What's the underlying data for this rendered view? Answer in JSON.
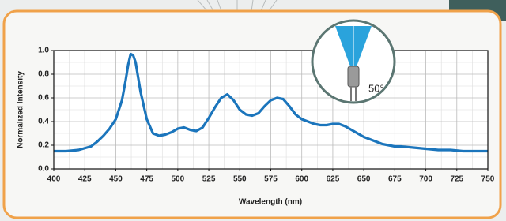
{
  "chart_data": {
    "type": "line",
    "xlabel": "Wavelength (nm)",
    "ylabel": "Normalized Intensity",
    "annotation": "50°",
    "x": [
      400,
      410,
      420,
      430,
      435,
      440,
      445,
      450,
      455,
      458,
      460,
      462,
      464,
      466,
      470,
      475,
      480,
      485,
      490,
      495,
      500,
      505,
      510,
      515,
      520,
      525,
      530,
      535,
      540,
      545,
      550,
      555,
      560,
      565,
      570,
      575,
      580,
      585,
      590,
      595,
      600,
      605,
      610,
      615,
      620,
      625,
      630,
      635,
      640,
      645,
      650,
      655,
      660,
      665,
      670,
      675,
      680,
      690,
      700,
      710,
      720,
      730,
      740,
      750
    ],
    "series": [
      {
        "color": "#1b75bc",
        "values": [
          0.15,
          0.15,
          0.16,
          0.19,
          0.23,
          0.28,
          0.34,
          0.42,
          0.58,
          0.75,
          0.88,
          0.97,
          0.96,
          0.9,
          0.65,
          0.42,
          0.3,
          0.28,
          0.29,
          0.31,
          0.34,
          0.35,
          0.33,
          0.32,
          0.35,
          0.43,
          0.52,
          0.6,
          0.63,
          0.58,
          0.5,
          0.46,
          0.45,
          0.47,
          0.53,
          0.58,
          0.6,
          0.59,
          0.53,
          0.46,
          0.42,
          0.4,
          0.38,
          0.37,
          0.37,
          0.38,
          0.38,
          0.36,
          0.33,
          0.3,
          0.27,
          0.25,
          0.23,
          0.21,
          0.2,
          0.19,
          0.19,
          0.18,
          0.17,
          0.16,
          0.16,
          0.15,
          0.15,
          0.15
        ]
      }
    ],
    "xlim": [
      400,
      750
    ],
    "xticks": [
      400,
      425,
      450,
      475,
      500,
      525,
      550,
      575,
      600,
      625,
      650,
      675,
      700,
      725,
      750
    ],
    "ylim": [
      0,
      1
    ],
    "yticks": [
      {
        "value": 0,
        "label": "0.0"
      },
      0.2,
      0.4,
      0.6,
      0.8,
      {
        "value": 1,
        "label": "1.0"
      }
    ],
    "grid": true
  }
}
